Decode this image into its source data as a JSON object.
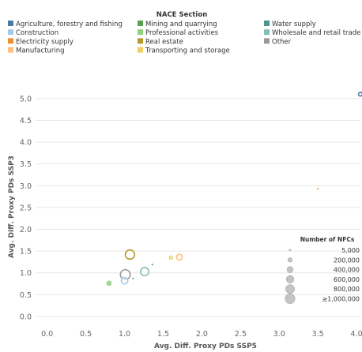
{
  "chart_data": {
    "type": "scatter",
    "xlabel": "Avg. Diff. Proxy PDs SSP5",
    "ylabel": "Avg. Diff. Proxy PDs SSP3",
    "xlim": [
      -0.15,
      4.05
    ],
    "ylim": [
      -0.2,
      5.45
    ],
    "x_ticks": [
      "0.0",
      "0.5",
      "1.0",
      "1.5",
      "2.0",
      "2.5",
      "3.0",
      "3.5",
      "4.0",
      "4."
    ],
    "y_ticks": [
      "0.0",
      "0.5",
      "1.0",
      "1.5",
      "2.0",
      "2.5",
      "3.0",
      "3.5",
      "4.0",
      "4.5",
      "5.0"
    ],
    "grid": "horizontal",
    "color_legend": {
      "title": "NACE Section",
      "items": [
        {
          "label": "Agriculture, forestry and fishing",
          "color": "#4e79a7"
        },
        {
          "label": "Construction",
          "color": "#a0cbe8"
        },
        {
          "label": "Electricity supply",
          "color": "#f28e2b"
        },
        {
          "label": "Manufacturing",
          "color": "#ffbe7d"
        },
        {
          "label": "Mining and quarrying",
          "color": "#59a14f"
        },
        {
          "label": "Professional activities",
          "color": "#8cd17d"
        },
        {
          "label": "Real estate",
          "color": "#b6992d"
        },
        {
          "label": "Transporting and storage",
          "color": "#f1ce63"
        },
        {
          "label": "Water supply",
          "color": "#499894"
        },
        {
          "label": "Wholesale and retail trade",
          "color": "#86bcb6"
        },
        {
          "label": "Other",
          "color": "#999999"
        }
      ]
    },
    "size_legend": {
      "title": "Number of NFCs",
      "items": [
        {
          "label": "5,000",
          "value": 5000
        },
        {
          "label": "200,000",
          "value": 200000
        },
        {
          "label": "400,000",
          "value": 400000
        },
        {
          "label": "600,000",
          "value": 600000
        },
        {
          "label": "800,000",
          "value": 800000
        },
        {
          "label": "≥1,000,000",
          "value": 1000000
        }
      ]
    },
    "points": [
      {
        "series": "Agriculture, forestry and fishing",
        "x": 4.05,
        "y": 5.1,
        "size": 150000,
        "style": "ring"
      },
      {
        "series": "Electricity supply",
        "x": 3.5,
        "y": 2.93,
        "size": 5000,
        "style": "filled"
      },
      {
        "series": "Real estate",
        "x": 1.07,
        "y": 1.42,
        "size": 900000,
        "style": "ring"
      },
      {
        "series": "Transporting and storage",
        "x": 1.6,
        "y": 1.35,
        "size": 100000,
        "style": "ring"
      },
      {
        "series": "Manufacturing",
        "x": 1.71,
        "y": 1.36,
        "size": 350000,
        "style": "ring"
      },
      {
        "series": "Water supply",
        "x": 1.36,
        "y": 1.19,
        "size": 5000,
        "style": "filled"
      },
      {
        "series": "Wholesale and retail trade",
        "x": 1.26,
        "y": 1.03,
        "size": 700000,
        "style": "ring"
      },
      {
        "series": "Other",
        "x": 1.01,
        "y": 0.96,
        "size": 1000000,
        "style": "ring"
      },
      {
        "series": "Construction",
        "x": 1.0,
        "y": 0.82,
        "size": 450000,
        "style": "ring"
      },
      {
        "series": "Water supply",
        "x": 1.11,
        "y": 0.87,
        "size": 5000,
        "style": "filled"
      },
      {
        "series": "Professional activities",
        "x": 0.8,
        "y": 0.76,
        "size": 300000,
        "style": "filled"
      }
    ]
  }
}
